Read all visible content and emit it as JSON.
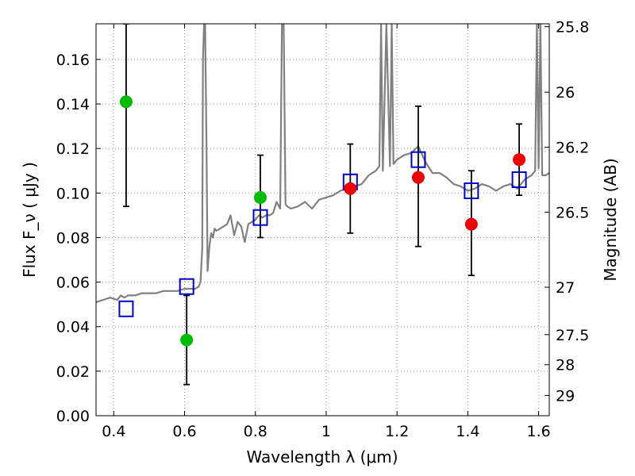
{
  "chart_data": {
    "type": "scatter",
    "title": "",
    "xlabel": "Wavelength  λ (μm)",
    "ylabel": "Flux  F_ν  ( μJy )",
    "ylabel_right": "Magnitude (AB)",
    "xlim": [
      0.35,
      1.63
    ],
    "ylim": [
      0.0,
      0.176
    ],
    "grid": true,
    "x_ticks": [
      0.4,
      0.6,
      0.8,
      1.0,
      1.2,
      1.4,
      1.6
    ],
    "x_tick_labels": [
      "0.4",
      "0.6",
      "0.8",
      "1",
      "1.2",
      "1.4",
      "1.6"
    ],
    "y_ticks": [
      0.0,
      0.02,
      0.04,
      0.06,
      0.08,
      0.1,
      0.12,
      0.14,
      0.16
    ],
    "y_tick_labels": [
      "0.00",
      "0.02",
      "0.04",
      "0.06",
      "0.08",
      "0.10",
      "0.12",
      "0.14",
      "0.16"
    ],
    "right_ticks": [
      {
        "label": "25.8",
        "flux": 0.1747
      },
      {
        "label": "26",
        "flux": 0.1453
      },
      {
        "label": "26.2",
        "flux": 0.1206
      },
      {
        "label": "26.5",
        "flux": 0.0914
      },
      {
        "label": "27",
        "flux": 0.0577
      },
      {
        "label": "27.5",
        "flux": 0.0364
      },
      {
        "label": "28",
        "flux": 0.0229
      },
      {
        "label": "29",
        "flux": 0.0091
      }
    ],
    "series": [
      {
        "marker": "square-open",
        "color": "#0000cc",
        "points": [
          {
            "x": 0.435,
            "y": 0.048
          },
          {
            "x": 0.606,
            "y": 0.058
          },
          {
            "x": 0.814,
            "y": 0.089
          },
          {
            "x": 1.068,
            "y": 0.105
          },
          {
            "x": 1.26,
            "y": 0.115
          },
          {
            "x": 1.41,
            "y": 0.101
          },
          {
            "x": 1.545,
            "y": 0.106
          }
        ]
      },
      {
        "marker": "circle",
        "color": "#00bb00",
        "points": [
          {
            "x": 0.435,
            "y": 0.141,
            "err_low": 0.047,
            "err_high": 0.035
          },
          {
            "x": 0.606,
            "y": 0.034,
            "err_low": 0.02,
            "err_high": 0.02
          },
          {
            "x": 0.814,
            "y": 0.098,
            "err_low": 0.018,
            "err_high": 0.019
          }
        ]
      },
      {
        "marker": "circle",
        "color": "#ee0000",
        "points": [
          {
            "x": 1.068,
            "y": 0.102,
            "err_low": 0.02,
            "err_high": 0.02
          },
          {
            "x": 1.26,
            "y": 0.107,
            "err_low": 0.031,
            "err_high": 0.032
          },
          {
            "x": 1.41,
            "y": 0.086,
            "err_low": 0.023,
            "err_high": 0.024
          },
          {
            "x": 1.545,
            "y": 0.115,
            "err_low": 0.016,
            "err_high": 0.016
          }
        ]
      },
      {
        "marker": "line",
        "color": "#808080",
        "x": [
          0.35,
          0.37,
          0.39,
          0.41,
          0.42,
          0.43,
          0.44,
          0.46,
          0.48,
          0.5,
          0.52,
          0.54,
          0.56,
          0.58,
          0.6,
          0.62,
          0.63,
          0.64,
          0.645,
          0.65,
          0.652,
          0.655,
          0.658,
          0.662,
          0.665,
          0.67,
          0.675,
          0.68,
          0.685,
          0.69,
          0.7,
          0.71,
          0.72,
          0.73,
          0.74,
          0.75,
          0.76,
          0.77,
          0.78,
          0.79,
          0.8,
          0.81,
          0.82,
          0.83,
          0.84,
          0.85,
          0.86,
          0.87,
          0.875,
          0.88,
          0.885,
          0.89,
          0.9,
          0.92,
          0.94,
          0.96,
          0.98,
          1.0,
          1.02,
          1.04,
          1.06,
          1.08,
          1.1,
          1.12,
          1.14,
          1.15,
          1.155,
          1.16,
          1.17,
          1.18,
          1.185,
          1.19,
          1.2,
          1.22,
          1.24,
          1.26,
          1.28,
          1.3,
          1.32,
          1.34,
          1.36,
          1.38,
          1.4,
          1.42,
          1.44,
          1.46,
          1.48,
          1.5,
          1.52,
          1.54,
          1.56,
          1.58,
          1.59,
          1.595,
          1.6,
          1.605,
          1.61,
          1.62,
          1.63
        ],
        "y": [
          0.051,
          0.052,
          0.053,
          0.052,
          0.054,
          0.053,
          0.054,
          0.054,
          0.055,
          0.055,
          0.055,
          0.056,
          0.056,
          0.056,
          0.057,
          0.057,
          0.057,
          0.058,
          0.06,
          0.075,
          0.16,
          0.176,
          0.176,
          0.12,
          0.065,
          0.076,
          0.082,
          0.08,
          0.084,
          0.083,
          0.084,
          0.085,
          0.086,
          0.09,
          0.081,
          0.087,
          0.085,
          0.078,
          0.086,
          0.087,
          0.088,
          0.09,
          0.089,
          0.09,
          0.09,
          0.091,
          0.096,
          0.093,
          0.176,
          0.176,
          0.095,
          0.094,
          0.093,
          0.094,
          0.096,
          0.093,
          0.097,
          0.098,
          0.099,
          0.101,
          0.102,
          0.103,
          0.104,
          0.108,
          0.11,
          0.112,
          0.176,
          0.11,
          0.176,
          0.112,
          0.176,
          0.113,
          0.115,
          0.117,
          0.118,
          0.121,
          0.114,
          0.109,
          0.109,
          0.107,
          0.104,
          0.103,
          0.101,
          0.102,
          0.104,
          0.103,
          0.101,
          0.103,
          0.104,
          0.102,
          0.106,
          0.108,
          0.11,
          0.176,
          0.111,
          0.176,
          0.108,
          0.108,
          0.109
        ]
      }
    ]
  }
}
